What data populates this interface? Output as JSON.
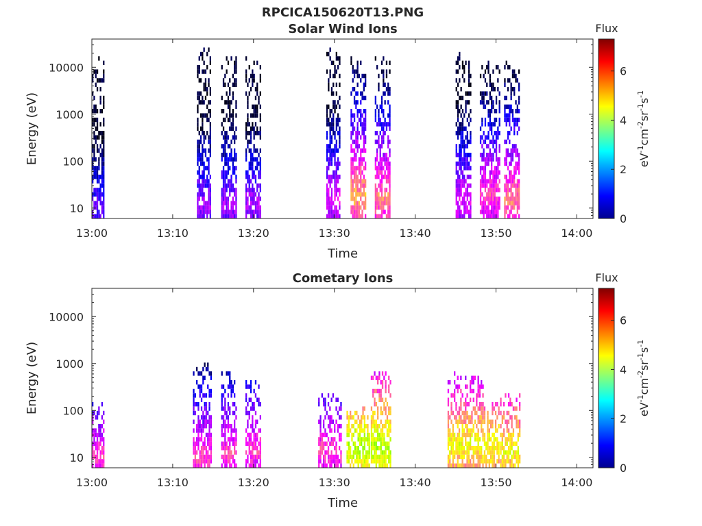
{
  "figure": {
    "title": "RPCICA150620T13.PNG"
  },
  "colors": {
    "axis": "#262626",
    "background": "#ffffff",
    "colormap": [
      "#00008f",
      "#0000ff",
      "#0080ff",
      "#00ffff",
      "#80ff80",
      "#ffff00",
      "#ff8000",
      "#ff0000",
      "#800000"
    ]
  },
  "chart_data": [
    {
      "type": "heatmap",
      "title": "Solar Wind Ions",
      "xlabel": "Time",
      "ylabel": "Energy (eV)",
      "x_ticks": [
        "13:00",
        "13:10",
        "13:20",
        "13:30",
        "13:40",
        "13:50",
        "14:00"
      ],
      "xlim_minutes": [
        0,
        62
      ],
      "y_scale": "log",
      "y_ticks": [
        "10",
        "100",
        "1000",
        "10000"
      ],
      "ylim": [
        6,
        40000
      ],
      "colorbar": {
        "title": "Flux",
        "label": "eV-1cm-2sr-1s-1",
        "range": [
          0,
          7.3
        ],
        "ticks": [
          "0",
          "2",
          "4",
          "6"
        ]
      },
      "bursts": [
        {
          "t_start": "13:00",
          "t_end": "13:01.5",
          "max_energy_eV": 14000,
          "peak_flux": 3.5,
          "peak_energy_eV": 10
        },
        {
          "t_start": "13:13",
          "t_end": "13:14.7",
          "max_energy_eV": 20000,
          "peak_flux": 4.0,
          "peak_energy_eV": 12
        },
        {
          "t_start": "13:16",
          "t_end": "13:18",
          "max_energy_eV": 15000,
          "peak_flux": 4.0,
          "peak_energy_eV": 12
        },
        {
          "t_start": "13:19",
          "t_end": "13:21",
          "max_energy_eV": 13000,
          "peak_flux": 4.0,
          "peak_energy_eV": 12
        },
        {
          "t_start": "13:29",
          "t_end": "13:30.8",
          "max_energy_eV": 20000,
          "peak_flux": 4.5,
          "peak_energy_eV": 15
        },
        {
          "t_start": "13:32",
          "t_end": "13:34",
          "max_energy_eV": 14000,
          "peak_flux": 5.8,
          "peak_energy_eV": 18
        },
        {
          "t_start": "13:35",
          "t_end": "13:37",
          "max_energy_eV": 15000,
          "peak_flux": 5.5,
          "peak_energy_eV": 18
        },
        {
          "t_start": "13:45",
          "t_end": "13:47",
          "max_energy_eV": 16000,
          "peak_flux": 4.5,
          "peak_energy_eV": 15
        },
        {
          "t_start": "13:48",
          "t_end": "13:50.5",
          "max_energy_eV": 14000,
          "peak_flux": 5.0,
          "peak_energy_eV": 20
        },
        {
          "t_start": "13:51",
          "t_end": "13:53",
          "max_energy_eV": 12000,
          "peak_flux": 5.5,
          "peak_energy_eV": 15
        }
      ]
    },
    {
      "type": "heatmap",
      "title": "Cometary Ions",
      "xlabel": "Time",
      "ylabel": "Energy (eV)",
      "x_ticks": [
        "13:00",
        "13:10",
        "13:20",
        "13:30",
        "13:40",
        "13:50",
        "14:00"
      ],
      "xlim_minutes": [
        0,
        62
      ],
      "y_scale": "log",
      "y_ticks": [
        "10",
        "100",
        "1000",
        "10000"
      ],
      "ylim": [
        6,
        40000
      ],
      "colorbar": {
        "title": "Flux",
        "label": "eV-1cm-2sr-1s-1",
        "range": [
          0,
          7.3
        ],
        "ticks": [
          "0",
          "2",
          "4",
          "6"
        ]
      },
      "bursts": [
        {
          "t_start": "13:00",
          "t_end": "13:01.5",
          "max_energy_eV": 150,
          "peak_flux": 5.0,
          "peak_energy_eV": 10
        },
        {
          "t_start": "13:12.5",
          "t_end": "13:14.8",
          "max_energy_eV": 900,
          "peak_flux": 5.0,
          "peak_energy_eV": 10
        },
        {
          "t_start": "13:16",
          "t_end": "13:18",
          "max_energy_eV": 700,
          "peak_flux": 5.0,
          "peak_energy_eV": 12
        },
        {
          "t_start": "13:19",
          "t_end": "13:21",
          "max_energy_eV": 450,
          "peak_flux": 5.0,
          "peak_energy_eV": 15
        },
        {
          "t_start": "13:28",
          "t_end": "13:31",
          "max_energy_eV": 200,
          "peak_flux": 5.0,
          "peak_energy_eV": 15
        },
        {
          "t_start": "13:31.5",
          "t_end": "13:34.5",
          "max_energy_eV": 100,
          "peak_flux": 7.0,
          "peak_energy_eV": 18
        },
        {
          "t_start": "13:34.5",
          "t_end": "13:37",
          "max_energy_eV": 700,
          "peak_flux": 7.0,
          "peak_energy_eV": 18
        },
        {
          "t_start": "13:44",
          "t_end": "13:48.5",
          "max_energy_eV": 600,
          "peak_flux": 6.5,
          "peak_energy_eV": 20
        },
        {
          "t_start": "13:48.5",
          "t_end": "13:50.5",
          "max_energy_eV": 150,
          "peak_flux": 6.5,
          "peak_energy_eV": 18
        },
        {
          "t_start": "13:50.5",
          "t_end": "13:53",
          "max_energy_eV": 200,
          "peak_flux": 6.5,
          "peak_energy_eV": 15
        }
      ]
    }
  ]
}
